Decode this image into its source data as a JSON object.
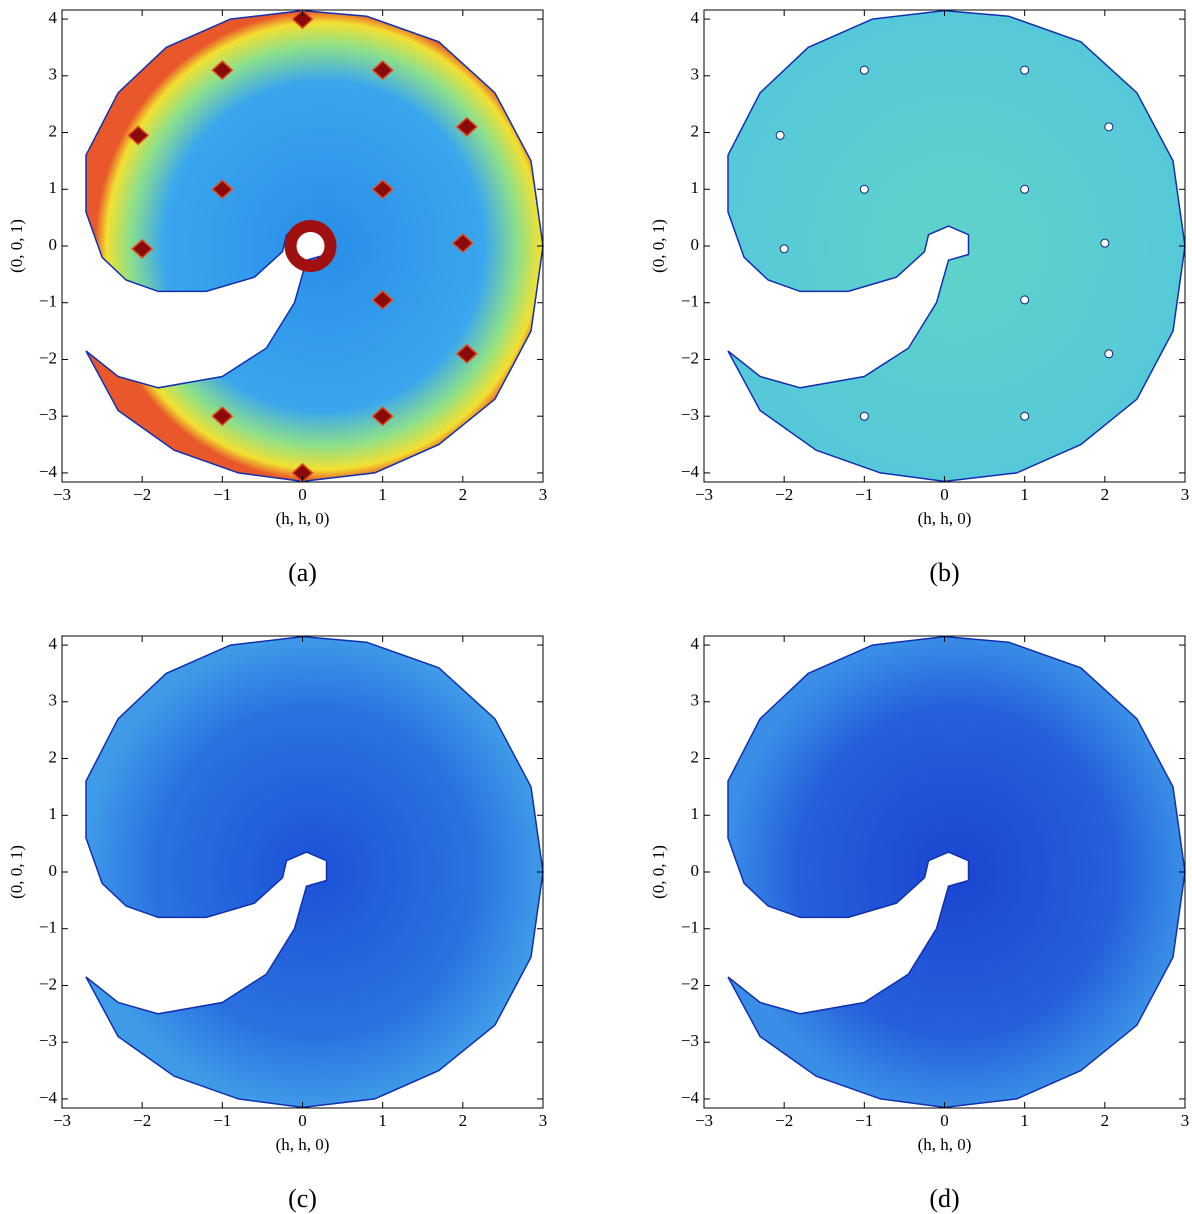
{
  "chart_data": [
    {
      "type": "heatmap",
      "caption": "(a)",
      "x_label": "(h, h, 0)",
      "y_label": "(0, 0, 1)",
      "xlim": [
        -3,
        3
      ],
      "ylim": [
        -4.16,
        4.16
      ],
      "xticks": [
        {
          "value": -3,
          "label": "−3"
        },
        {
          "value": -2,
          "label": "−2"
        },
        {
          "value": -1,
          "label": "−1"
        },
        0,
        1,
        2,
        3
      ],
      "yticks": [
        {
          "value": -4,
          "label": "−4"
        },
        {
          "value": -3,
          "label": "−3"
        },
        {
          "value": -2,
          "label": "−2"
        },
        {
          "value": -1,
          "label": "−1"
        },
        0,
        1,
        2,
        3,
        4
      ]
    },
    {
      "type": "heatmap",
      "caption": "(b)",
      "x_label": "(h, h, 0)",
      "y_label": "(0, 0, 1)",
      "xlim": [
        -3,
        3
      ],
      "ylim": [
        -4.16,
        4.16
      ],
      "xticks": [
        {
          "value": -3,
          "label": "−3"
        },
        {
          "value": -2,
          "label": "−2"
        },
        {
          "value": -1,
          "label": "−1"
        },
        0,
        1,
        2,
        3
      ],
      "yticks": [
        {
          "value": -4,
          "label": "−4"
        },
        {
          "value": -3,
          "label": "−3"
        },
        {
          "value": -2,
          "label": "−2"
        },
        {
          "value": -1,
          "label": "−1"
        },
        0,
        1,
        2,
        3,
        4
      ]
    },
    {
      "type": "heatmap",
      "caption": "(c)",
      "x_label": "(h, h, 0)",
      "y_label": "(0, 0, 1)",
      "xlim": [
        -3,
        3
      ],
      "ylim": [
        -4.16,
        4.16
      ],
      "xticks": [
        {
          "value": -3,
          "label": "−3"
        },
        {
          "value": -2,
          "label": "−2"
        },
        {
          "value": -1,
          "label": "−1"
        },
        0,
        1,
        2,
        3
      ],
      "yticks": [
        {
          "value": -4,
          "label": "−4"
        },
        {
          "value": -3,
          "label": "−3"
        },
        {
          "value": -2,
          "label": "−2"
        },
        {
          "value": -1,
          "label": "−1"
        },
        0,
        1,
        2,
        3,
        4
      ]
    },
    {
      "type": "heatmap",
      "caption": "(d)",
      "x_label": "(h, h, 0)",
      "y_label": "(0, 0, 1)",
      "xlim": [
        -3,
        3
      ],
      "ylim": [
        -4.16,
        4.16
      ],
      "xticks": [
        {
          "value": -3,
          "label": "−3"
        },
        {
          "value": -2,
          "label": "−2"
        },
        {
          "value": -1,
          "label": "−1"
        },
        0,
        1,
        2,
        3
      ],
      "yticks": [
        {
          "value": -4,
          "label": "−4"
        },
        {
          "value": -3,
          "label": "−3"
        },
        {
          "value": -2,
          "label": "−2"
        },
        {
          "value": -1,
          "label": "−1"
        },
        0,
        1,
        2,
        3,
        4
      ]
    }
  ]
}
